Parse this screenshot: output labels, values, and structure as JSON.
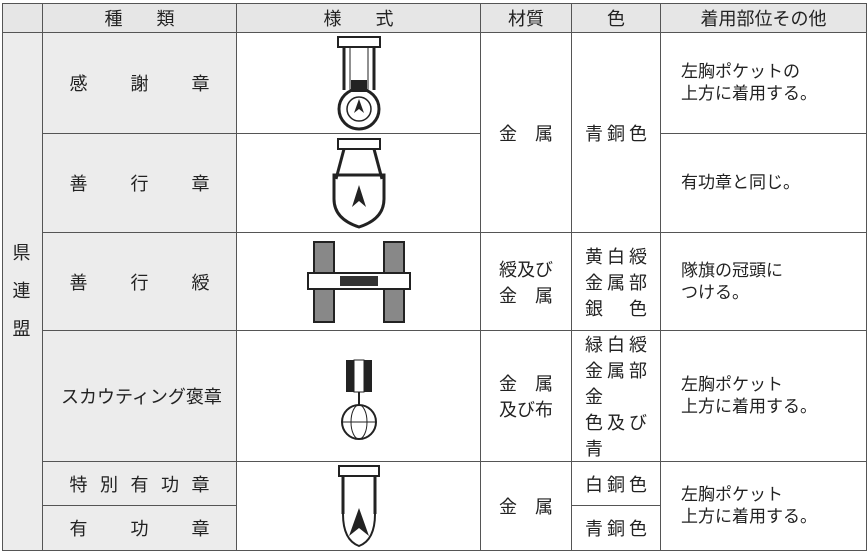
{
  "header": {
    "columns": [
      "種類",
      "様式",
      "材質",
      "色",
      "着用部位その他"
    ]
  },
  "group": "県連盟",
  "rows": [
    {
      "type": "感謝章",
      "note": [
        "左胸ポケットの",
        "上方に着用する。"
      ]
    },
    {
      "type": "善行章",
      "note": [
        "有功章と同じ。"
      ]
    },
    {
      "type": "善行綬",
      "material": [
        "綬及び",
        "金属"
      ],
      "color": [
        "黄白綬",
        "金属部",
        "銀色"
      ],
      "note": [
        "隊旗の冠頭に",
        "つける。"
      ]
    },
    {
      "type": "スカウティング褒章",
      "material": [
        "金属",
        "及び布"
      ],
      "color": [
        "緑白綬",
        "金属部金",
        "色及び青"
      ],
      "note": [
        "左胸ポケット",
        "上方に着用する。"
      ]
    },
    {
      "type": "特別有功章",
      "color": [
        "白銅色"
      ]
    },
    {
      "type": "有功章",
      "color": [
        "青銅色"
      ]
    }
  ],
  "merged": [
    {
      "material": [
        "金属"
      ],
      "color": [
        "青銅色"
      ]
    },
    {
      "material": [
        "金属"
      ],
      "note": [
        "左胸ポケット",
        "上方に着用する。"
      ]
    }
  ]
}
